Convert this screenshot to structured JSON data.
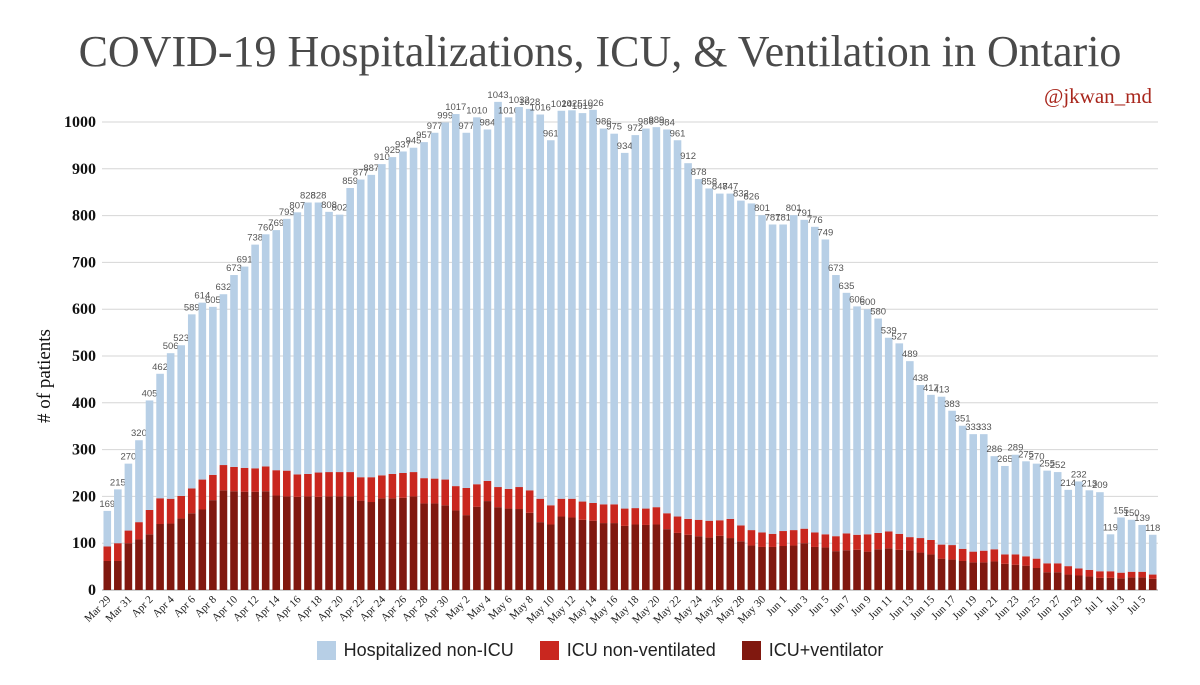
{
  "title": "COVID-19 Hospitalizations, ICU, & Ventilation in Ontario",
  "handle": "@jkwan_md",
  "colors": {
    "hosp": "#b7cfe6",
    "icu": "#c9271f",
    "vent": "#80180f",
    "grid": "#d6d6d6"
  },
  "chart_data": {
    "type": "bar",
    "stacked": true,
    "title": "COVID-19 Hospitalizations, ICU, & Ventilation in Ontario",
    "ylabel": "# of patients",
    "xlabel": "",
    "ylim": [
      0,
      1000
    ],
    "yticks": [
      0,
      100,
      200,
      300,
      400,
      500,
      600,
      700,
      800,
      900,
      1000
    ],
    "grid": true,
    "legend_position": "bottom",
    "categories": [
      "Mar 29",
      "Mar 30",
      "Mar 31",
      "Apr 1",
      "Apr 2",
      "Apr 3",
      "Apr 4",
      "Apr 5",
      "Apr 6",
      "Apr 7",
      "Apr 8",
      "Apr 9",
      "Apr 10",
      "Apr 11",
      "Apr 12",
      "Apr 13",
      "Apr 14",
      "Apr 15",
      "Apr 16",
      "Apr 17",
      "Apr 18",
      "Apr 19",
      "Apr 20",
      "Apr 21",
      "Apr 22",
      "Apr 23",
      "Apr 24",
      "Apr 25",
      "Apr 26",
      "Apr 27",
      "Apr 28",
      "Apr 29",
      "Apr 30",
      "May 1",
      "May 2",
      "May 3",
      "May 4",
      "May 5",
      "May 6",
      "May 7",
      "May 8",
      "May 9",
      "May 10",
      "May 11",
      "May 12",
      "May 13",
      "May 14",
      "May 15",
      "May 16",
      "May 17",
      "May 18",
      "May 19",
      "May 20",
      "May 21",
      "May 22",
      "May 23",
      "May 24",
      "May 25",
      "May 26",
      "May 27",
      "May 28",
      "May 29",
      "May 30",
      "May 31",
      "Jun 1",
      "Jun 2",
      "Jun 3",
      "Jun 4",
      "Jun 5",
      "Jun 6",
      "Jun 7",
      "Jun 8",
      "Jun 9",
      "Jun 10",
      "Jun 11",
      "Jun 12",
      "Jun 13",
      "Jun 14",
      "Jun 15",
      "Jun 16",
      "Jun 17",
      "Jun 18",
      "Jun 19",
      "Jun 20",
      "Jun 21",
      "Jun 22",
      "Jun 23",
      "Jun 24",
      "Jun 25",
      "Jun 26",
      "Jun 27",
      "Jun 28",
      "Jun 29",
      "Jun 30",
      "Jul 1",
      "Jul 2",
      "Jul 3",
      "Jul 4",
      "Jul 5",
      "Jul 6"
    ],
    "tick_labels": [
      "Mar 29",
      "",
      "Mar 31",
      "",
      "Apr 2",
      "",
      "Apr 4",
      "",
      "Apr 6",
      "",
      "Apr 8",
      "",
      "Apr 10",
      "",
      "Apr 12",
      "",
      "Apr 14",
      "",
      "Apr 16",
      "",
      "Apr 18",
      "",
      "Apr 20",
      "",
      "Apr 22",
      "",
      "Apr 24",
      "",
      "Apr 26",
      "",
      "Apr 28",
      "",
      "Apr 30",
      "",
      "May 2",
      "",
      "May 4",
      "",
      "May 6",
      "",
      "May 8",
      "",
      "May 10",
      "",
      "May 12",
      "",
      "May 14",
      "",
      "May 16",
      "",
      "May 18",
      "",
      "May 20",
      "",
      "May 22",
      "",
      "May 24",
      "",
      "May 26",
      "",
      "May 28",
      "",
      "May 30",
      "",
      "Jun 1",
      "",
      "Jun 3",
      "",
      "Jun 5",
      "",
      "Jun 7",
      "",
      "Jun 9",
      "",
      "Jun 11",
      "",
      "Jun 13",
      "",
      "Jun 15",
      "",
      "Jun 17",
      "",
      "Jun 19",
      "",
      "Jun 21",
      "",
      "Jun 23",
      "",
      "Jun 25",
      "",
      "Jun 27",
      "",
      "Jun 29",
      "",
      "Jul 1",
      "",
      "Jul 3",
      "",
      "Jul 5",
      ""
    ],
    "totals": [
      169,
      215,
      270,
      320,
      405,
      462,
      506,
      523,
      589,
      614,
      605,
      632,
      673,
      691,
      738,
      760,
      769,
      793,
      807,
      828,
      828,
      808,
      802,
      859,
      877,
      887,
      910,
      925,
      937,
      945,
      957,
      977,
      999,
      1017,
      977,
      1010,
      984,
      1043,
      1010,
      1032,
      1028,
      1016,
      961,
      1024,
      1025,
      1019,
      1026,
      986,
      975,
      934,
      972,
      986,
      989,
      984,
      961,
      912,
      878,
      858,
      847,
      847,
      832,
      826,
      801,
      781,
      781,
      801,
      791,
      776,
      749,
      673,
      635,
      606,
      600,
      580,
      539,
      527,
      489,
      438,
      417,
      413,
      383,
      351,
      333,
      333,
      286,
      265,
      289,
      275,
      270,
      255,
      252,
      214,
      232,
      213,
      209,
      119,
      155,
      150,
      139,
      118
    ],
    "series": [
      {
        "name": "Hospitalized non-ICU",
        "values": [
          76,
          115,
          143,
          175,
          234,
          266,
          311,
          322,
          372,
          378,
          359,
          365,
          410,
          430,
          478,
          496,
          513,
          538,
          560,
          580,
          577,
          556,
          550,
          607,
          636,
          646,
          665,
          677,
          687,
          693,
          718,
          739,
          763,
          795,
          759,
          784,
          751,
          823,
          794,
          812,
          815,
          821,
          780,
          829,
          830,
          830,
          840,
          803,
          792,
          760,
          797,
          812,
          812,
          820,
          804,
          760,
          728,
          710,
          698,
          695,
          694,
          698,
          678,
          661,
          655,
          673,
          660,
          653,
          630,
          558,
          514,
          488,
          481,
          458,
          414,
          407,
          376,
          327,
          310,
          316,
          287,
          263,
          251,
          249,
          199,
          189,
          213,
          203,
          203,
          198,
          195,
          163,
          186,
          170,
          169,
          79,
          118,
          111,
          100,
          85
        ]
      },
      {
        "name": "ICU non-ventilated",
        "values": [
          31,
          38,
          27,
          37,
          52,
          55,
          53,
          48,
          53,
          64,
          54,
          54,
          52,
          51,
          50,
          53,
          54,
          55,
          48,
          48,
          52,
          52,
          52,
          52,
          50,
          53,
          49,
          52,
          53,
          52,
          54,
          53,
          55,
          52,
          58,
          48,
          43,
          43,
          42,
          47,
          48,
          50,
          41,
          38,
          40,
          39,
          38,
          40,
          40,
          37,
          35,
          35,
          37,
          34,
          35,
          34,
          35,
          36,
          33,
          41,
          34,
          33,
          31,
          28,
          32,
          33,
          31,
          31,
          28,
          32,
          36,
          32,
          37,
          35,
          36,
          34,
          28,
          31,
          31,
          30,
          31,
          26,
          23,
          25,
          26,
          20,
          22,
          20,
          20,
          19,
          19,
          18,
          15,
          14,
          14,
          14,
          12,
          12,
          12,
          9
        ]
      },
      {
        "name": "ICU+ventilator",
        "values": [
          62,
          62,
          100,
          108,
          119,
          141,
          142,
          153,
          164,
          172,
          192,
          213,
          211,
          210,
          210,
          211,
          202,
          200,
          199,
          200,
          199,
          200,
          200,
          200,
          191,
          188,
          196,
          196,
          197,
          200,
          185,
          185,
          181,
          170,
          160,
          178,
          190,
          177,
          174,
          173,
          165,
          145,
          140,
          157,
          155,
          150,
          148,
          143,
          143,
          137,
          140,
          139,
          140,
          130,
          122,
          118,
          115,
          112,
          116,
          111,
          104,
          95,
          92,
          92,
          94,
          95,
          100,
          92,
          91,
          83,
          85,
          86,
          82,
          87,
          89,
          86,
          85,
          80,
          76,
          67,
          65,
          62,
          59,
          59,
          61,
          56,
          54,
          52,
          47,
          38,
          38,
          33,
          31,
          29,
          26,
          26,
          25,
          27,
          27,
          24
        ]
      }
    ]
  },
  "legend": [
    {
      "label": "Hospitalized non-ICU",
      "color": "#b7cfe6"
    },
    {
      "label": "ICU non-ventilated",
      "color": "#c9271f"
    },
    {
      "label": "ICU+ventilator",
      "color": "#80180f"
    }
  ]
}
